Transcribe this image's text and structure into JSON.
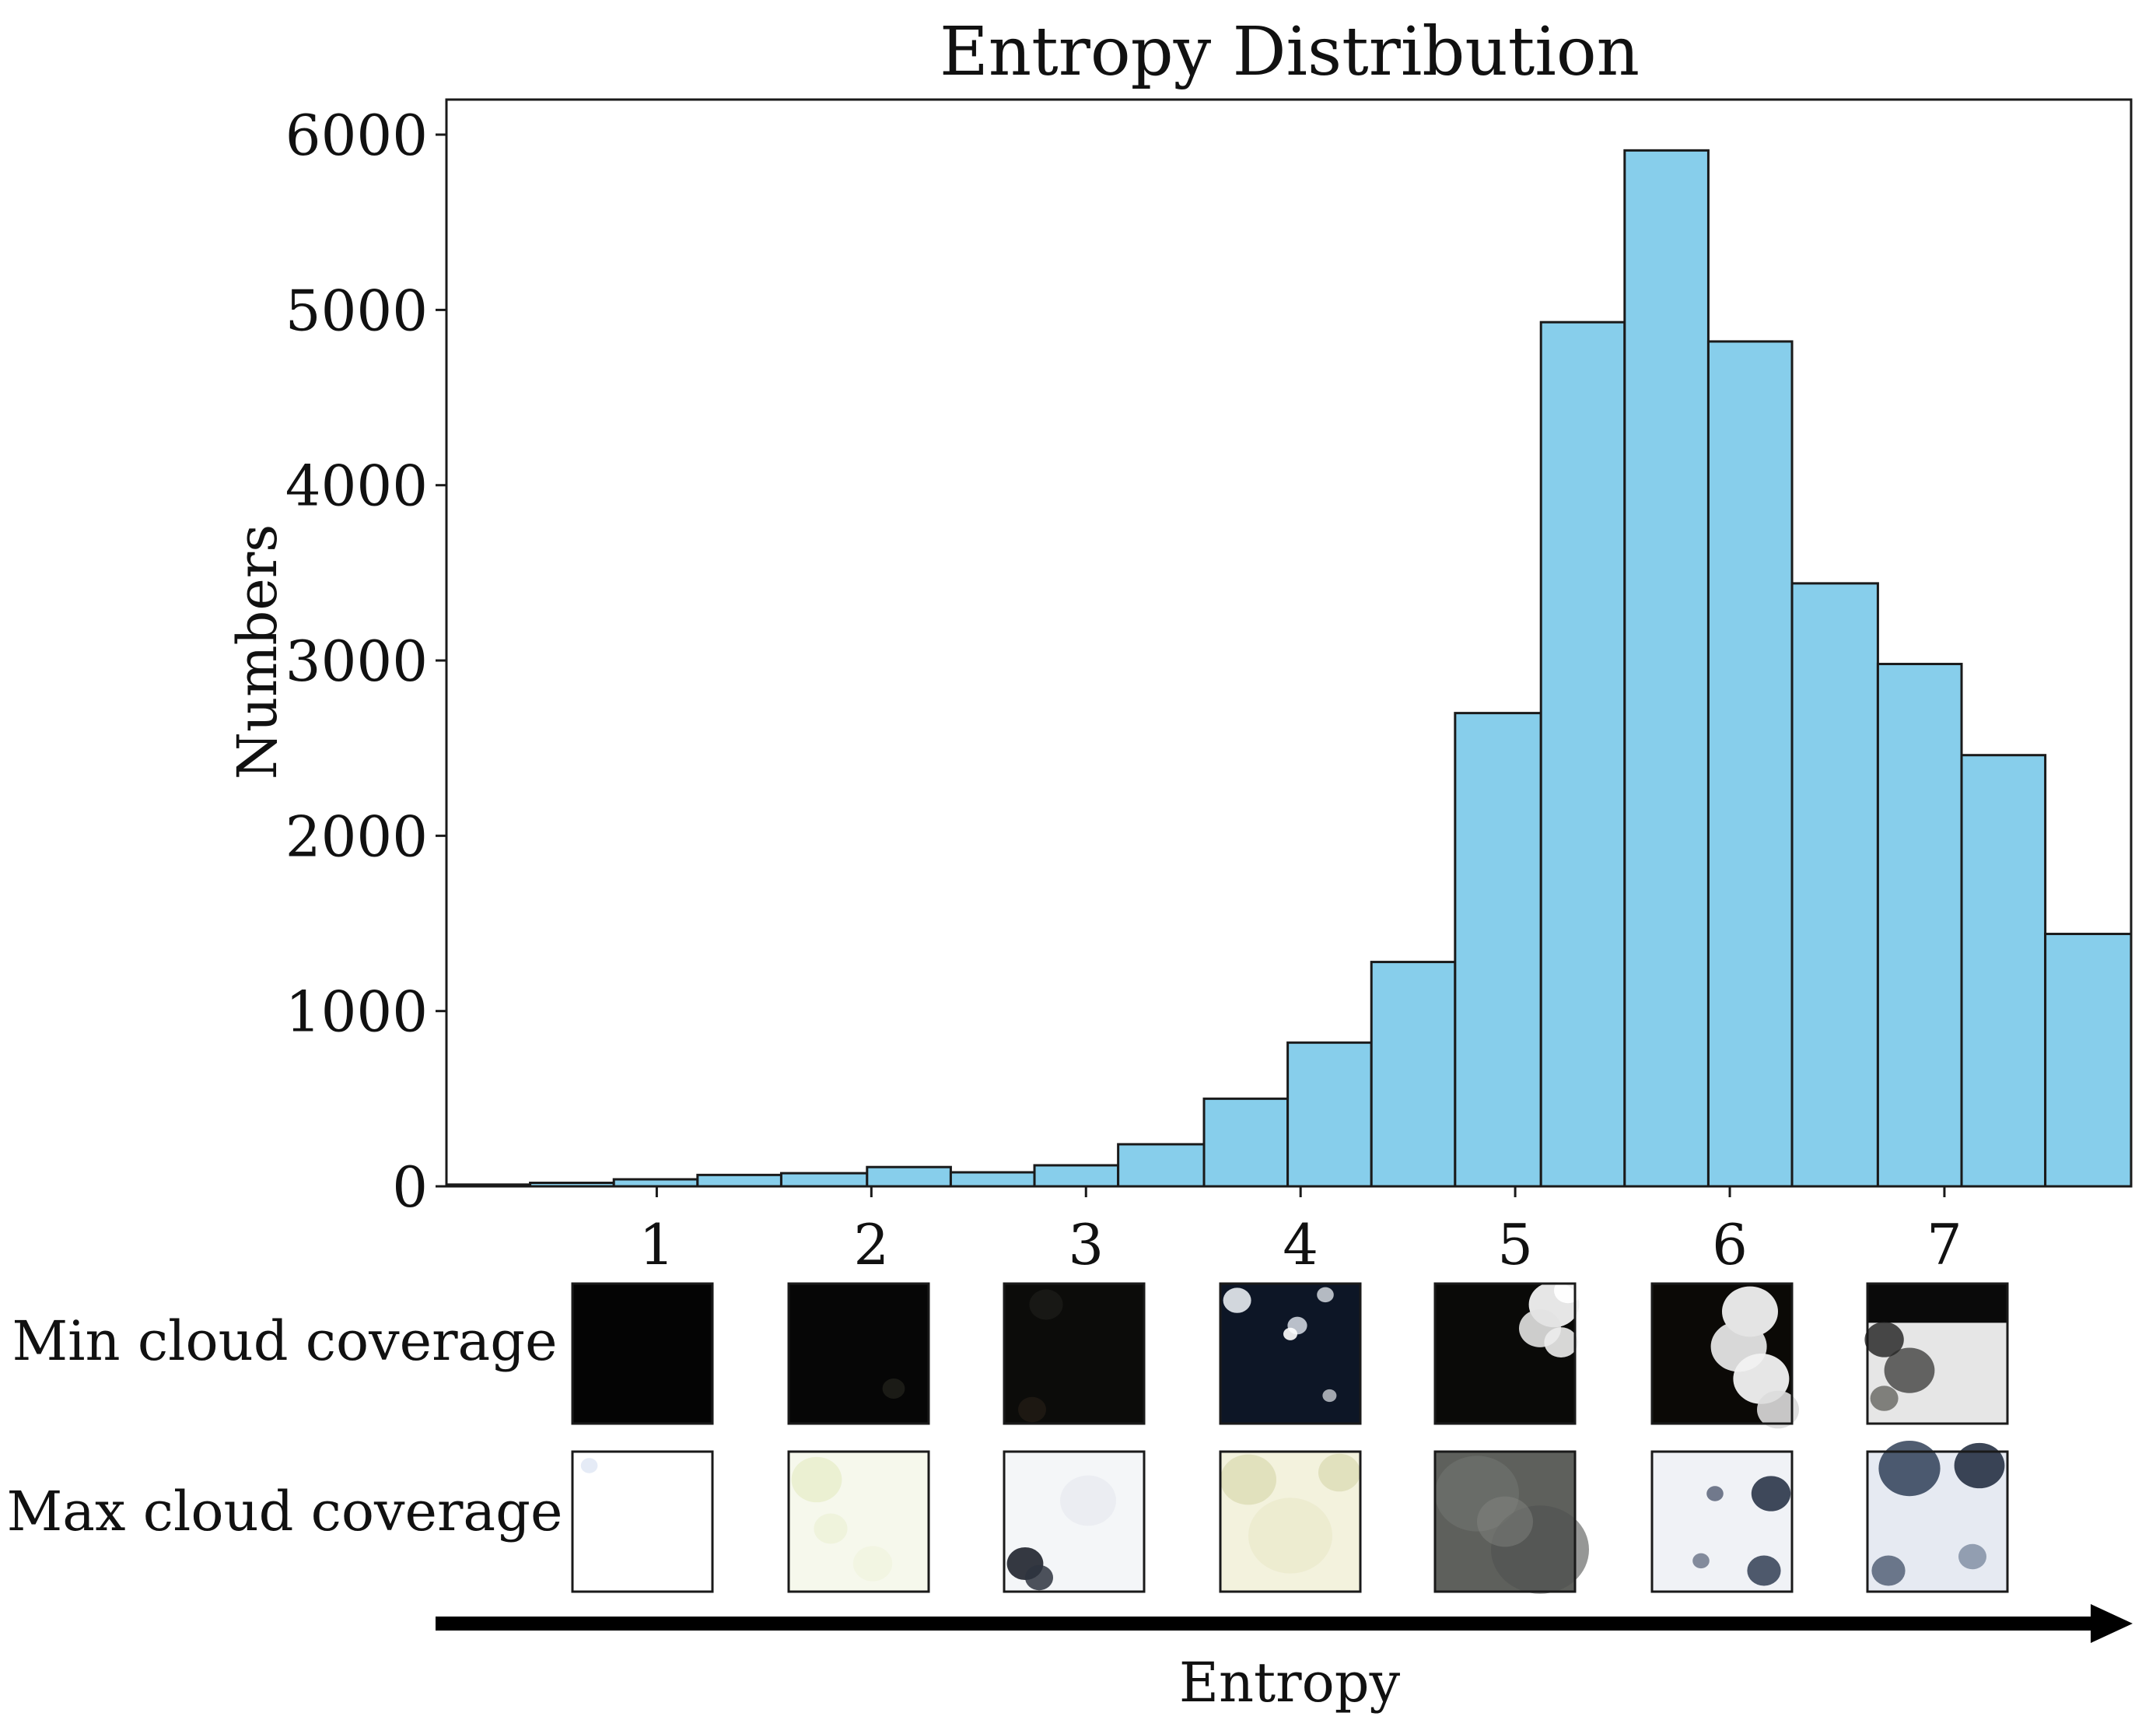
{
  "colors": {
    "bar_fill": "#87ceeb",
    "bar_edge": "#1a1a1a",
    "axis": "#1a1a1a",
    "background": "#ffffff",
    "arrow": "#000000"
  },
  "chart_data": {
    "type": "bar",
    "title": "Entropy Distribution",
    "xlabel": "Entropy",
    "ylabel": "Numbers",
    "xlim": [
      0.02,
      7.87
    ],
    "ylim": [
      0,
      6200
    ],
    "bins": [
      {
        "x0": 0.02,
        "x1": 0.41,
        "value": 10
      },
      {
        "x0": 0.41,
        "x1": 0.8,
        "value": 20
      },
      {
        "x0": 0.8,
        "x1": 1.19,
        "value": 40
      },
      {
        "x0": 1.19,
        "x1": 1.58,
        "value": 65
      },
      {
        "x0": 1.58,
        "x1": 1.98,
        "value": 75
      },
      {
        "x0": 1.98,
        "x1": 2.37,
        "value": 110
      },
      {
        "x0": 2.37,
        "x1": 2.76,
        "value": 80
      },
      {
        "x0": 2.76,
        "x1": 3.15,
        "value": 120
      },
      {
        "x0": 3.15,
        "x1": 3.55,
        "value": 240
      },
      {
        "x0": 3.55,
        "x1": 3.94,
        "value": 500
      },
      {
        "x0": 3.94,
        "x1": 4.33,
        "value": 820
      },
      {
        "x0": 4.33,
        "x1": 4.72,
        "value": 1280
      },
      {
        "x0": 4.72,
        "x1": 5.12,
        "value": 2700
      },
      {
        "x0": 5.12,
        "x1": 5.51,
        "value": 4930
      },
      {
        "x0": 5.51,
        "x1": 5.9,
        "value": 5910
      },
      {
        "x0": 5.9,
        "x1": 6.29,
        "value": 4820
      },
      {
        "x0": 6.29,
        "x1": 6.69,
        "value": 3440
      },
      {
        "x0": 6.69,
        "x1": 7.08,
        "value": 2980
      },
      {
        "x0": 7.08,
        "x1": 7.47,
        "value": 2460
      },
      {
        "x0": 7.47,
        "x1": 7.87,
        "value": 1440
      }
    ],
    "x_ticks": [
      {
        "value": 1,
        "label": "1"
      },
      {
        "value": 2,
        "label": "2"
      },
      {
        "value": 3,
        "label": "3"
      },
      {
        "value": 4,
        "label": "4"
      },
      {
        "value": 5,
        "label": "5"
      },
      {
        "value": 6,
        "label": "6"
      },
      {
        "value": 7,
        "label": "7"
      }
    ],
    "y_ticks": [
      {
        "value": 0,
        "label": "0"
      },
      {
        "value": 1000,
        "label": "1000"
      },
      {
        "value": 2000,
        "label": "2000"
      },
      {
        "value": 3000,
        "label": "3000"
      },
      {
        "value": 4000,
        "label": "4000"
      },
      {
        "value": 5000,
        "label": "5000"
      },
      {
        "value": 6000,
        "label": "6000"
      }
    ],
    "grid": false
  },
  "thumbnails": {
    "min_label": "Min cloud coverage",
    "max_label": "Max cloud coverage",
    "min": [
      {
        "tone": "black",
        "base": "#040404"
      },
      {
        "tone": "black",
        "base": "#060606"
      },
      {
        "tone": "dark",
        "base": "#0c0c0a"
      },
      {
        "tone": "dark-blue",
        "base": "#0d1626"
      },
      {
        "tone": "dark",
        "base": "#0a0a08"
      },
      {
        "tone": "dark",
        "base": "#0b0906"
      },
      {
        "tone": "bright",
        "base": "#e6e6e6"
      }
    ],
    "max": [
      {
        "tone": "white",
        "base": "#ffffff"
      },
      {
        "tone": "light-yellow",
        "base": "#f6f8ec"
      },
      {
        "tone": "white",
        "base": "#f4f6f8"
      },
      {
        "tone": "light-yellow",
        "base": "#f3f2dd"
      },
      {
        "tone": "grey",
        "base": "#5e605c"
      },
      {
        "tone": "white",
        "base": "#f0f2f6"
      },
      {
        "tone": "white-blue",
        "base": "#e6eaf2"
      }
    ]
  }
}
